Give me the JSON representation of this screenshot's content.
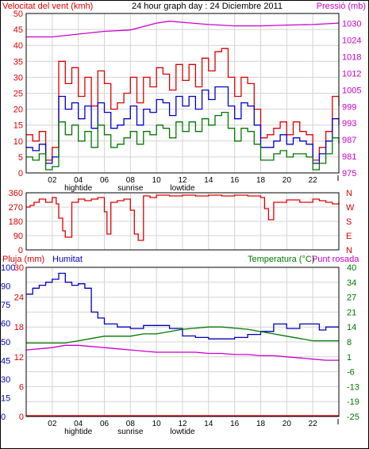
{
  "colors": {
    "wind_max": "#dd0000",
    "wind_avg": "#0000cc",
    "wind_min": "#007700",
    "pressure": "#cc00cc",
    "direction": "#dd0000",
    "rain": "#dd0000",
    "humidity": "#0000bb",
    "temperature": "#007700",
    "dewpoint": "#cc00cc",
    "grid": "#d4d4d4",
    "axis": "#000000"
  },
  "chart_data": [
    {
      "type": "line",
      "title": "24 hour graph day : 24 Diciembre 2011",
      "ylabel_left": "Velocitat del vent (kmh)",
      "ylabel_right": "Pressió (mb)",
      "ylim_left": [
        0,
        50
      ],
      "ylim_right": [
        975,
        1033
      ],
      "yticks_left": [
        "0",
        "5",
        "10",
        "15",
        "20",
        "25",
        "30",
        "35",
        "40",
        "45",
        "50"
      ],
      "yticks_right": [
        "975",
        "981",
        "987",
        "993",
        "999",
        "1005",
        "1012",
        "1018",
        "1024",
        "1030"
      ],
      "x_ticks": [
        "02",
        "04",
        "06",
        "08",
        "10",
        "12",
        "14",
        "16",
        "18",
        "20",
        "22"
      ],
      "x_sublabels": [
        {
          "hour": 4,
          "text": "hightide"
        },
        {
          "hour": 8,
          "text": "sunrise"
        },
        {
          "hour": 12,
          "text": "lowtide"
        }
      ],
      "grid": true,
      "series": [
        {
          "name": "Velocitat del vent",
          "key": "wind_max",
          "axis": "left",
          "x": [
            0,
            0.5,
            1,
            1.5,
            2,
            2.5,
            3,
            3.5,
            4,
            4.5,
            5,
            5.5,
            6,
            6.5,
            7,
            7.5,
            8,
            8.5,
            9,
            9.5,
            10,
            10.5,
            11,
            11.5,
            12,
            12.5,
            13,
            13.5,
            14,
            14.5,
            15,
            15.5,
            16,
            16.5,
            17,
            17.5,
            18,
            18.5,
            19,
            19.5,
            20,
            20.5,
            21,
            21.5,
            22,
            22.5,
            23,
            23.5,
            24
          ],
          "values": [
            12,
            10,
            13,
            4,
            8,
            35,
            28,
            33,
            24,
            30,
            21,
            32,
            28,
            20,
            22,
            25,
            30,
            22,
            30,
            27,
            33,
            31,
            26,
            34,
            29,
            34,
            27,
            36,
            32,
            38,
            39,
            30,
            24,
            30,
            28,
            20,
            11,
            12,
            14,
            16,
            12,
            16,
            13,
            12,
            4,
            8,
            13,
            24,
            21
          ]
        },
        {
          "name": "",
          "key": "wind_avg",
          "axis": "left",
          "x": [
            0,
            0.5,
            1,
            1.5,
            2,
            2.5,
            3,
            3.5,
            4,
            4.5,
            5,
            5.5,
            6,
            6.5,
            7,
            7.5,
            8,
            8.5,
            9,
            9.5,
            10,
            10.5,
            11,
            11.5,
            12,
            12.5,
            13,
            13.5,
            14,
            14.5,
            15,
            15.5,
            16,
            16.5,
            17,
            17.5,
            18,
            18.5,
            19,
            19.5,
            20,
            20.5,
            21,
            21.5,
            22,
            22.5,
            23,
            23.5,
            24
          ],
          "values": [
            8,
            7,
            9,
            3,
            5,
            24,
            20,
            22,
            17,
            21,
            14,
            22,
            19,
            14,
            15,
            17,
            21,
            15,
            20,
            19,
            23,
            22,
            18,
            24,
            21,
            24,
            20,
            26,
            23,
            27,
            27,
            21,
            17,
            22,
            21,
            15,
            8,
            8,
            10,
            12,
            9,
            11,
            10,
            9,
            3,
            6,
            10,
            17,
            15
          ]
        },
        {
          "name": "",
          "key": "wind_min",
          "axis": "left",
          "x": [
            0,
            0.5,
            1,
            1.5,
            2,
            2.5,
            3,
            3.5,
            4,
            4.5,
            5,
            5.5,
            6,
            6.5,
            7,
            7.5,
            8,
            8.5,
            9,
            9.5,
            10,
            10.5,
            11,
            11.5,
            12,
            12.5,
            13,
            13.5,
            14,
            14.5,
            15,
            15.5,
            16,
            16.5,
            17,
            17.5,
            18,
            18.5,
            19,
            19.5,
            20,
            20.5,
            21,
            21.5,
            22,
            22.5,
            23,
            23.5,
            24
          ],
          "values": [
            5,
            4,
            6,
            1,
            2,
            16,
            12,
            15,
            10,
            13,
            8,
            15,
            12,
            8,
            9,
            11,
            13,
            9,
            13,
            12,
            15,
            14,
            11,
            16,
            13,
            16,
            13,
            17,
            15,
            18,
            19,
            14,
            10,
            14,
            13,
            9,
            4,
            4,
            6,
            7,
            5,
            6,
            6,
            5,
            1,
            3,
            6,
            11,
            9
          ]
        },
        {
          "name": "Pressió",
          "key": "pressure",
          "axis": "right",
          "x": [
            0,
            2,
            4,
            6,
            8,
            10,
            11,
            12,
            14,
            16,
            18,
            20,
            22,
            24
          ],
          "values": [
            1024.5,
            1024.5,
            1025.5,
            1026.5,
            1027,
            1029.5,
            1030.2,
            1029.8,
            1029,
            1028.5,
            1028.5,
            1028.8,
            1029,
            1029.5
          ]
        }
      ]
    },
    {
      "type": "line",
      "ylim": [
        0,
        360
      ],
      "yticks_left": [
        "0",
        "90",
        "180",
        "270",
        "360"
      ],
      "yticks_right": [
        "N",
        "E",
        "S",
        "W",
        "N"
      ],
      "grid": true,
      "series": [
        {
          "name": "",
          "key": "direction",
          "x": [
            0,
            0.3,
            0.6,
            1,
            1.5,
            2,
            2.3,
            2.5,
            2.8,
            3,
            3.5,
            4,
            4.5,
            5,
            5.5,
            6,
            6.2,
            6.5,
            7,
            7.5,
            8,
            8.3,
            8.6,
            9,
            9.5,
            10,
            11,
            12,
            13,
            14,
            15,
            16,
            17,
            18,
            18.3,
            18.6,
            19,
            20,
            21,
            22,
            22.5,
            23,
            23.5,
            24
          ],
          "values": [
            270,
            280,
            300,
            320,
            300,
            330,
            290,
            200,
            120,
            80,
            300,
            320,
            310,
            320,
            330,
            240,
            100,
            300,
            310,
            320,
            250,
            100,
            60,
            340,
            330,
            345,
            340,
            345,
            340,
            345,
            340,
            345,
            340,
            330,
            260,
            190,
            300,
            315,
            300,
            320,
            310,
            300,
            290,
            300
          ]
        }
      ]
    },
    {
      "type": "line",
      "ylabel_left": "Pluja (mm)",
      "ylabel_left2": "Humitat",
      "ylabel_right": "Temperatura (°C)",
      "ylabel_right2": "Punt rosada",
      "yticks_humidity": [
        "0",
        "15",
        "30",
        "45",
        "50",
        "60",
        "75",
        "90",
        "100"
      ],
      "yticks_rain": [
        "0",
        "6",
        "12",
        "18",
        "24",
        "30"
      ],
      "yticks_temp": [
        "-25",
        "-19",
        "-13",
        "-6",
        "1",
        "8",
        "14",
        "21",
        "27",
        "34",
        "40"
      ],
      "ylim_temp": [
        -25,
        40
      ],
      "ylim_humidity": [
        0,
        100
      ],
      "ylim_rain": [
        0,
        30
      ],
      "x_ticks": [
        "02",
        "04",
        "06",
        "08",
        "10",
        "12",
        "14",
        "16",
        "18",
        "20",
        "22"
      ],
      "x_sublabels": [
        {
          "hour": 4,
          "text": "hightide"
        },
        {
          "hour": 8,
          "text": "sunrise"
        },
        {
          "hour": 12,
          "text": "lowtide"
        }
      ],
      "grid": true,
      "series": [
        {
          "name": "Humitat",
          "key": "humidity",
          "axis": "humidity",
          "x": [
            0,
            0.5,
            1,
            1.5,
            2,
            2.5,
            3,
            3.5,
            4,
            4.5,
            5,
            5.5,
            6,
            7,
            8,
            9,
            10,
            11,
            12,
            13,
            14,
            15,
            16,
            17,
            18,
            19,
            20,
            21,
            22,
            22.5,
            23,
            24
          ],
          "values": [
            82,
            86,
            88,
            90,
            92,
            96,
            90,
            88,
            89,
            86,
            70,
            66,
            62,
            60,
            59,
            61,
            61,
            59,
            54,
            53,
            52,
            52,
            53,
            55,
            57,
            62,
            59,
            62,
            62,
            58,
            60,
            60
          ]
        },
        {
          "name": "Temperatura (°C)",
          "key": "temperature",
          "axis": "temp",
          "x": [
            0,
            1,
            2,
            3,
            4,
            5,
            6,
            7,
            8,
            9,
            10,
            11,
            12,
            13,
            14,
            15,
            16,
            17,
            18,
            19,
            20,
            21,
            22,
            23,
            24
          ],
          "values": [
            7,
            7,
            7,
            7,
            8,
            9,
            10,
            10,
            10,
            11,
            11,
            12,
            13,
            13.5,
            14,
            14,
            13.5,
            13,
            12,
            11,
            10,
            9,
            8,
            8,
            8
          ]
        },
        {
          "name": "Punt rosada",
          "key": "dewpoint",
          "axis": "temp",
          "x": [
            0,
            1,
            2,
            3,
            4,
            5,
            6,
            7,
            8,
            9,
            10,
            11,
            12,
            13,
            14,
            15,
            16,
            17,
            18,
            19,
            20,
            21,
            22,
            23,
            24
          ],
          "values": [
            4,
            4.5,
            5,
            6,
            6,
            5.5,
            5,
            4.5,
            4,
            3.5,
            3,
            3,
            3,
            3,
            2.5,
            2.5,
            2,
            2,
            1.5,
            1.5,
            1,
            0.5,
            0,
            -0.5,
            -0.5
          ]
        },
        {
          "name": "Pluja (mm)",
          "key": "rain",
          "axis": "rain",
          "x": [
            0,
            24
          ],
          "values": [
            0,
            0
          ]
        }
      ]
    }
  ]
}
